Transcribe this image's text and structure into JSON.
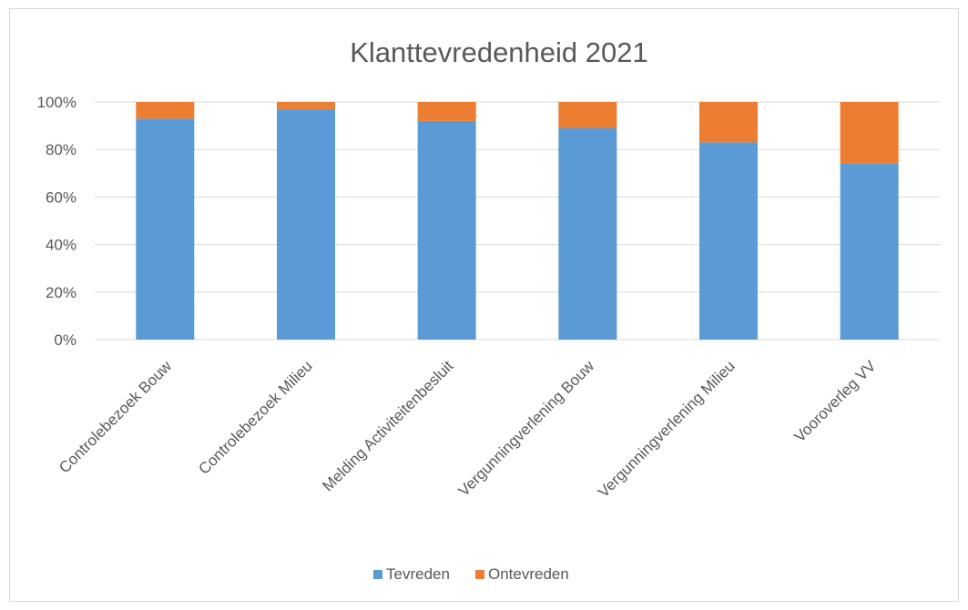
{
  "chart_data": {
    "type": "bar",
    "stacked": "percent",
    "title": "Klanttevredenheid 2021",
    "xlabel": "",
    "ylabel": "",
    "categories": [
      "Controlebezoek Bouw",
      "Controlebezoek Milieu",
      "Melding Activiteitenbesluit",
      "Vergunningverlening Bouw",
      "Vergunningverlening Milieu",
      "Vooroverleg VV"
    ],
    "series": [
      {
        "name": "Tevreden",
        "color": "#5b9bd5",
        "values": [
          93,
          97,
          92,
          89,
          83,
          74
        ]
      },
      {
        "name": "Ontevreden",
        "color": "#ed7d31",
        "values": [
          7,
          3,
          8,
          11,
          17,
          26
        ]
      }
    ],
    "ylim": [
      0,
      100
    ],
    "yticks": [
      "0%",
      "20%",
      "40%",
      "60%",
      "80%",
      "100%"
    ],
    "grid": true,
    "legend": "bottom"
  }
}
